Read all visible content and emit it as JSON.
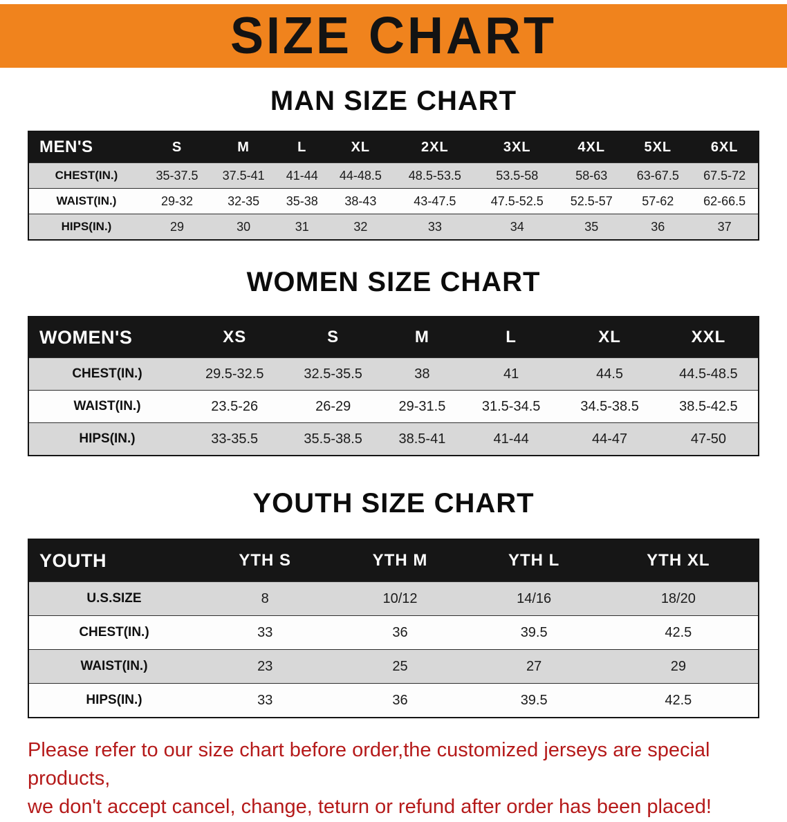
{
  "banner": {
    "title": "SIZE CHART"
  },
  "colors": {
    "banner_bg": "#f0831d",
    "header_bg": "#161616",
    "row_alt": "#d8d8d8",
    "disclaimer_red": "#b51a1a"
  },
  "sections": {
    "men": {
      "heading": "MAN SIZE CHART",
      "table": {
        "header": [
          "MEN'S",
          "S",
          "M",
          "L",
          "XL",
          "2XL",
          "3XL",
          "4XL",
          "5XL",
          "6XL"
        ],
        "rows": [
          [
            "CHEST(IN.)",
            "35-37.5",
            "37.5-41",
            "41-44",
            "44-48.5",
            "48.5-53.5",
            "53.5-58",
            "58-63",
            "63-67.5",
            "67.5-72"
          ],
          [
            "WAIST(IN.)",
            "29-32",
            "32-35",
            "35-38",
            "38-43",
            "43-47.5",
            "47.5-52.5",
            "52.5-57",
            "57-62",
            "62-66.5"
          ],
          [
            "HIPS(IN.)",
            "29",
            "30",
            "31",
            "32",
            "33",
            "34",
            "35",
            "36",
            "37"
          ]
        ]
      }
    },
    "women": {
      "heading": "WOMEN SIZE CHART",
      "table": {
        "header": [
          "WOMEN'S",
          "XS",
          "S",
          "M",
          "L",
          "XL",
          "XXL"
        ],
        "rows": [
          [
            "CHEST(IN.)",
            "29.5-32.5",
            "32.5-35.5",
            "38",
            "41",
            "44.5",
            "44.5-48.5"
          ],
          [
            "WAIST(IN.)",
            "23.5-26",
            "26-29",
            "29-31.5",
            "31.5-34.5",
            "34.5-38.5",
            "38.5-42.5"
          ],
          [
            "HIPS(IN.)",
            "33-35.5",
            "35.5-38.5",
            "38.5-41",
            "41-44",
            "44-47",
            "47-50"
          ]
        ]
      }
    },
    "youth": {
      "heading": "YOUTH SIZE CHART",
      "table": {
        "header": [
          "YOUTH",
          "YTH S",
          "YTH M",
          "YTH L",
          "YTH XL"
        ],
        "rows": [
          [
            "U.S.SIZE",
            "8",
            "10/12",
            "14/16",
            "18/20"
          ],
          [
            "CHEST(IN.)",
            "33",
            "36",
            "39.5",
            "42.5"
          ],
          [
            "WAIST(IN.)",
            "23",
            "25",
            "27",
            "29"
          ],
          [
            "HIPS(IN.)",
            "33",
            "36",
            "39.5",
            "42.5"
          ]
        ]
      }
    }
  },
  "disclaimer": {
    "line1": "Please refer to our size chart before order,the customized jerseys are special products,",
    "line2": "we don't accept cancel, change, teturn or refund after order has been placed!"
  }
}
